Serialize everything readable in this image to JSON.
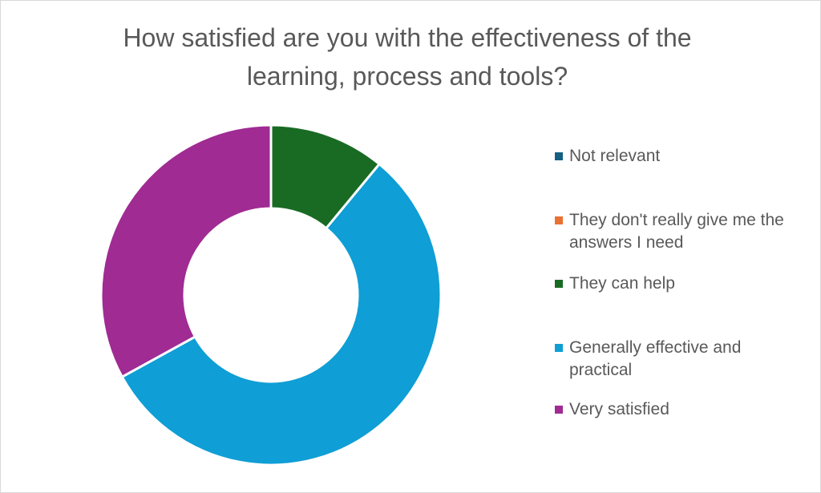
{
  "chart_data": {
    "type": "pie",
    "donut": true,
    "title": "How satisfied are you with the effectiveness of the learning, process and tools?",
    "legend_position": "right",
    "series": [
      {
        "name": "Not relevant",
        "value": 0,
        "color": "#156082"
      },
      {
        "name": "They don't really give me the answers I need",
        "value": 0,
        "color": "#E97132"
      },
      {
        "name": "They can help",
        "value": 11,
        "color": "#196B24"
      },
      {
        "name": "Generally effective and practical",
        "value": 56,
        "color": "#0F9ED5"
      },
      {
        "name": "Very satisfied",
        "value": 33,
        "color": "#A02B93"
      }
    ]
  }
}
